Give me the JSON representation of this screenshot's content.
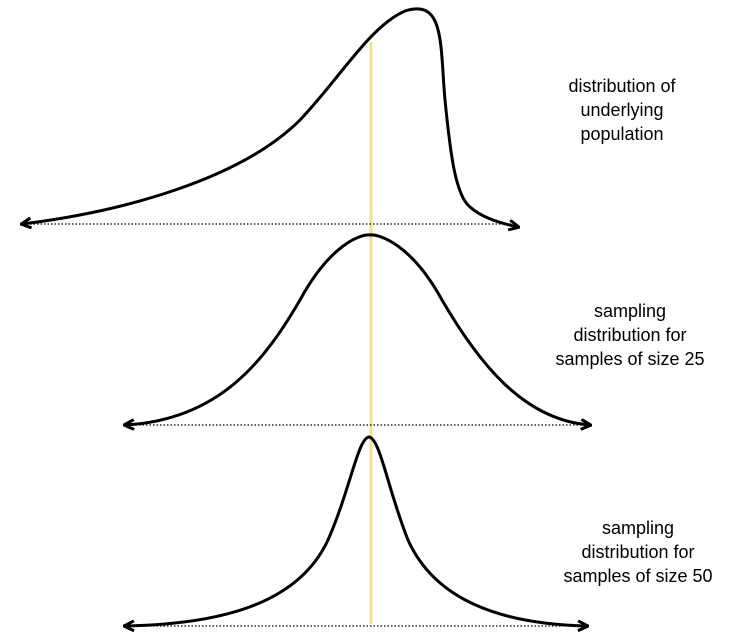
{
  "labels": {
    "population": [
      "distribution of",
      "underlying",
      "population"
    ],
    "size25": [
      "sampling",
      "distribution for",
      "samples of size 25"
    ],
    "size50": [
      "sampling",
      "distribution for",
      "samples of size 50"
    ]
  },
  "colors": {
    "curve": "#000000",
    "axis": "#000000",
    "mean_line": "#f2e08f",
    "background": "#ffffff"
  }
}
